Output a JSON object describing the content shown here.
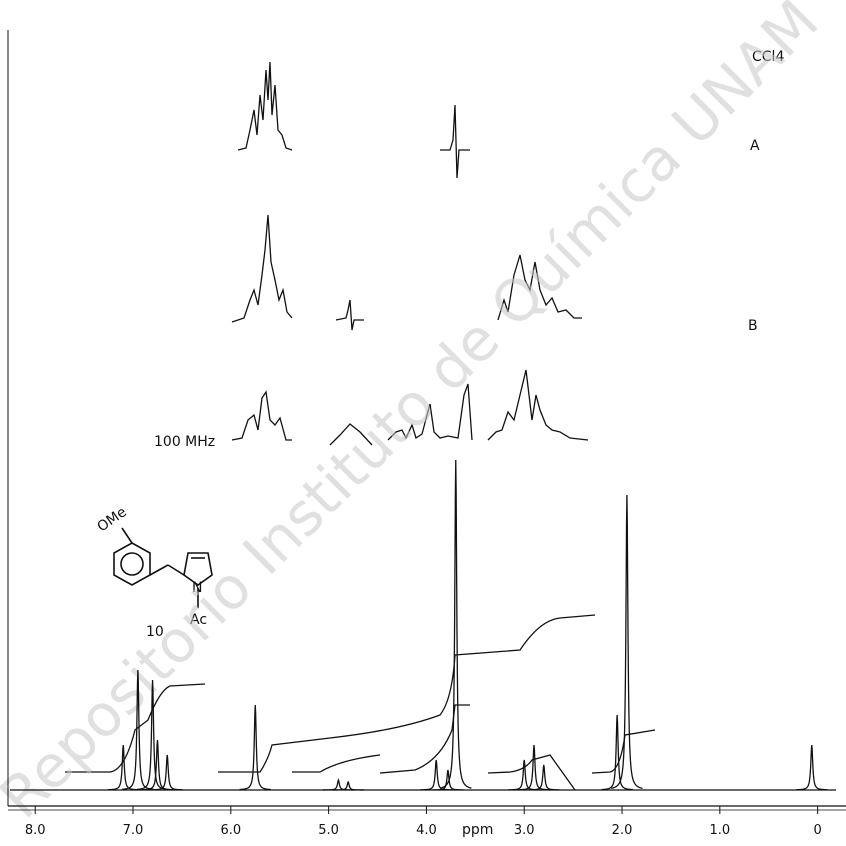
{
  "chart_data": {
    "type": "nmr",
    "solvent": "CCl4",
    "inset_labels": [
      "A",
      "B"
    ],
    "frequency": "100 MHz",
    "compound_number": "10",
    "structure_labels": [
      "OMe",
      "N",
      "Ac"
    ],
    "x_label": "ppm",
    "watermark": "Repositorio Instituto de Química UNAM",
    "xlim": [
      8.36,
      -0.29
    ],
    "xticks": [
      {
        "value": 8,
        "label": "8.0"
      },
      {
        "value": 7,
        "label": "7.0"
      },
      {
        "value": 6,
        "label": "6.0"
      },
      {
        "value": 5,
        "label": "5.0"
      },
      {
        "value": 4,
        "label": "4.0"
      },
      {
        "value": 3,
        "label": "3.0"
      },
      {
        "value": 2,
        "label": "2.0"
      },
      {
        "value": 1,
        "label": "1.0"
      },
      0
    ],
    "color": "#111111",
    "peaks": {
      "ppm": [
        7.1,
        6.95,
        6.8,
        6.75,
        6.65,
        5.75,
        4.9,
        4.8,
        3.9,
        3.78,
        3.7,
        3.0,
        2.9,
        2.8,
        2.05,
        1.95,
        0.06
      ],
      "height": [
        45,
        120,
        110,
        50,
        35,
        85,
        10,
        8,
        30,
        20,
        330,
        30,
        45,
        25,
        75,
        295,
        45
      ]
    }
  }
}
